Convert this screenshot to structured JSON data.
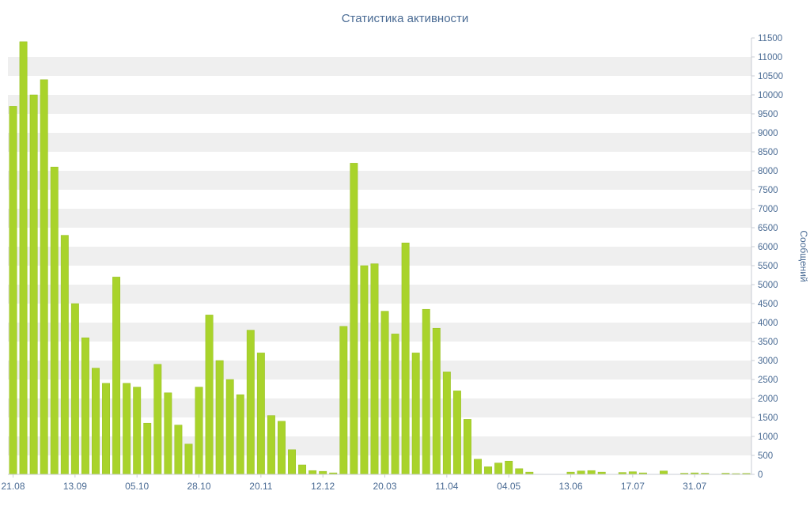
{
  "title": "Статистика активности",
  "chart_data": {
    "type": "bar",
    "title": "Статистика активности",
    "xlabel": "",
    "ylabel": "Сообщений",
    "ylim": [
      0,
      11500
    ],
    "ytick_step": 500,
    "grid": "striped-horizontal-bands",
    "legend": "none",
    "x_tick_labels": [
      "21.08",
      "13.09",
      "05.10",
      "28.10",
      "20.11",
      "12.12",
      "20.03",
      "11.04",
      "04.05",
      "13.06",
      "17.07",
      "31.07"
    ],
    "x_tick_every": 6,
    "values": [
      9700,
      11400,
      10000,
      10400,
      8100,
      6300,
      4500,
      3600,
      2800,
      2400,
      5200,
      2400,
      2300,
      1350,
      2900,
      2150,
      1300,
      800,
      2300,
      4200,
      3000,
      2500,
      2100,
      3800,
      3200,
      1550,
      1400,
      650,
      250,
      100,
      80,
      40,
      3900,
      8200,
      5500,
      5550,
      4300,
      3700,
      6100,
      3200,
      4350,
      3850,
      2700,
      2200,
      1450,
      400,
      200,
      300,
      350,
      150,
      60,
      0,
      0,
      0,
      60,
      90,
      100,
      60,
      0,
      50,
      70,
      40,
      0,
      90,
      0,
      30,
      40,
      30,
      0,
      30,
      20,
      25
    ],
    "colors": {
      "bar": "#a9d32b",
      "bar_edge": "#94bd20",
      "stripe": "#efefef",
      "axis_line": "#c9ccd4",
      "axis_text": "#4a6b94",
      "title_text": "#4a6b94",
      "background": "#ffffff"
    }
  }
}
